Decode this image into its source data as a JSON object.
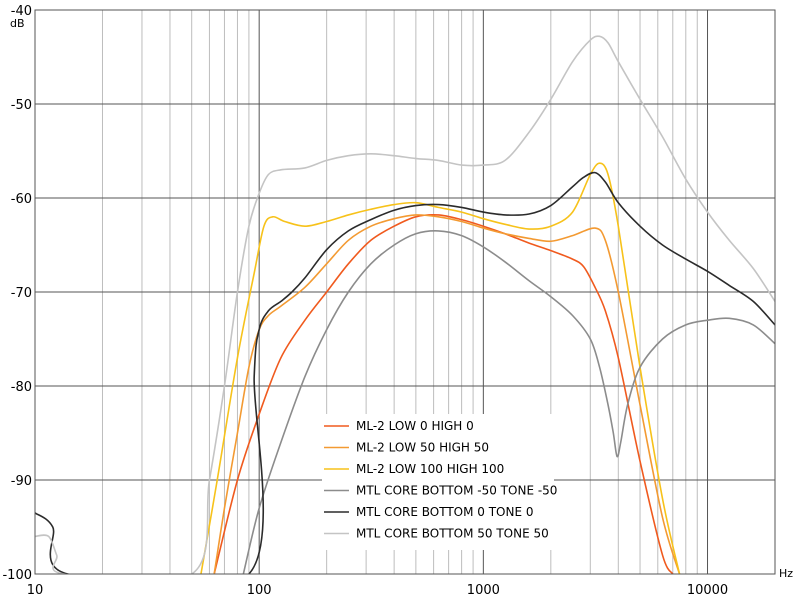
{
  "chart_data": {
    "type": "line",
    "xscale": "log",
    "xlim": [
      10,
      20000
    ],
    "ylim": [
      -100,
      -40
    ],
    "xlabel": "Hz",
    "ylabel": "dB",
    "x_ticks": [
      10,
      100,
      1000,
      10000
    ],
    "x_tick_labels": [
      "10",
      "100",
      "1000",
      "10000"
    ],
    "y_ticks": [
      -40,
      -50,
      -60,
      -70,
      -80,
      -90,
      -100
    ],
    "y_tick_labels": [
      "-40",
      "-50",
      "-60",
      "-70",
      "-80",
      "-90",
      "-100"
    ],
    "grid": true,
    "legend_position": "lower-center",
    "series": [
      {
        "name": "ML-2 LOW 0 HIGH 0",
        "color": "#f05a1e",
        "x": [
          63,
          80,
          100,
          125,
          160,
          200,
          250,
          315,
          400,
          500,
          630,
          800,
          1000,
          1250,
          1600,
          2000,
          2500,
          2800,
          3150,
          3500,
          4000,
          5000,
          6300,
          7000
        ],
        "y": [
          -100,
          -90,
          -83,
          -77,
          -73,
          -70,
          -67,
          -64.5,
          -63,
          -62,
          -61.8,
          -62.3,
          -63,
          -63.8,
          -64.8,
          -65.6,
          -66.5,
          -67.3,
          -69.5,
          -72,
          -77,
          -88,
          -98,
          -100
        ]
      },
      {
        "name": "ML-2 LOW 50 HIGH 50",
        "color": "#f39a32",
        "x": [
          63,
          70,
          80,
          90,
          100,
          110,
          125,
          160,
          200,
          250,
          315,
          400,
          500,
          630,
          800,
          1000,
          1250,
          1600,
          2000,
          2500,
          3150,
          3500,
          4000,
          5000,
          6300,
          7500
        ],
        "y": [
          -100,
          -93,
          -85,
          -78,
          -74,
          -72.5,
          -71.5,
          -69.5,
          -67,
          -64.5,
          -63,
          -62.2,
          -61.8,
          -62,
          -62.5,
          -63.2,
          -63.8,
          -64.3,
          -64.6,
          -64,
          -63.2,
          -64.5,
          -70,
          -82,
          -94,
          -100
        ]
      },
      {
        "name": "ML-2 LOW 100 HIGH 100",
        "color": "#f7c21a",
        "x": [
          55,
          65,
          80,
          95,
          105,
          115,
          130,
          160,
          200,
          250,
          315,
          400,
          500,
          630,
          800,
          1000,
          1250,
          1600,
          2000,
          2500,
          3000,
          3300,
          3600,
          4000,
          5000,
          6300,
          7500
        ],
        "y": [
          -100,
          -90,
          -77,
          -68,
          -63,
          -62,
          -62.5,
          -63,
          -62.5,
          -61.8,
          -61.2,
          -60.7,
          -60.5,
          -61,
          -61.5,
          -62.2,
          -62.8,
          -63.3,
          -63,
          -61.5,
          -57.5,
          -56.3,
          -57.5,
          -63,
          -78,
          -92,
          -100
        ]
      },
      {
        "name": "MTL CORE BOTTOM -50 TONE -50",
        "color": "#8c8c8c",
        "x": [
          85,
          100,
          125,
          160,
          200,
          250,
          315,
          400,
          500,
          630,
          800,
          1000,
          1250,
          1600,
          2000,
          2500,
          3000,
          3300,
          3600,
          3800,
          3950,
          4100,
          4400,
          5000,
          6300,
          8000,
          10000,
          12500,
          16000,
          20000
        ],
        "y": [
          -100,
          -93,
          -86,
          -79,
          -74,
          -70,
          -67,
          -65,
          -63.8,
          -63.5,
          -64,
          -65.2,
          -66.8,
          -68.8,
          -70.5,
          -72.5,
          -75,
          -78,
          -82,
          -85,
          -87.5,
          -86,
          -82,
          -78,
          -75,
          -73.5,
          -73,
          -72.8,
          -73.5,
          -75.5
        ]
      },
      {
        "name": "MTL CORE BOTTOM 0 TONE 0",
        "color": "#2b2b2b",
        "x": [
          10,
          12,
          14,
          90,
          95,
          100,
          110,
          125,
          140,
          160,
          200,
          250,
          315,
          400,
          500,
          630,
          800,
          1000,
          1250,
          1600,
          2000,
          2500,
          2800,
          3150,
          3500,
          4000,
          5000,
          6300,
          8000,
          10000,
          12500,
          16000,
          20000
        ],
        "y": [
          -93.5,
          -95,
          -100,
          -100,
          -79,
          -74,
          -72,
          -71,
          -70,
          -68.5,
          -65.5,
          -63.5,
          -62.3,
          -61.3,
          -60.8,
          -60.7,
          -61,
          -61.5,
          -61.8,
          -61.7,
          -60.8,
          -58.8,
          -57.8,
          -57.3,
          -58.3,
          -60.5,
          -63,
          -65,
          -66.5,
          -67.8,
          -69.3,
          -71,
          -73.5
        ]
      },
      {
        "name": "MTL CORE BOTTOM 50 TONE 50",
        "color": "#c4c4c4",
        "x": [
          10,
          11.5,
          12.5,
          13.5,
          50,
          60,
          70,
          80,
          90,
          100,
          110,
          125,
          160,
          200,
          250,
          315,
          400,
          500,
          630,
          800,
          1000,
          1250,
          1600,
          2000,
          2500,
          3000,
          3300,
          3600,
          4000,
          5000,
          6300,
          8000,
          10000,
          12500,
          16000,
          20000
        ],
        "y": [
          -96,
          -96,
          -98,
          -100,
          -100,
          -90,
          -80,
          -70,
          -63,
          -59.5,
          -57.5,
          -57,
          -56.8,
          -56,
          -55.5,
          -55.3,
          -55.5,
          -55.8,
          -56,
          -56.5,
          -56.5,
          -56,
          -53,
          -49.5,
          -45.5,
          -43.2,
          -42.8,
          -43.5,
          -45.5,
          -49.5,
          -53.5,
          -58,
          -61.5,
          -64.5,
          -67.5,
          -71
        ]
      }
    ]
  }
}
